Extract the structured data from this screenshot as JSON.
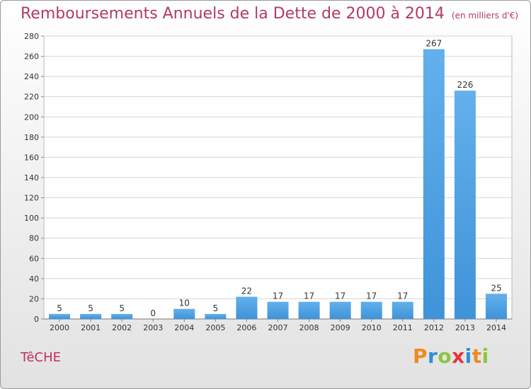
{
  "header": {
    "title": "Remboursements Annuels de la Dette de 2000 à 2014",
    "unit": "(en milliers d'€)"
  },
  "footer": {
    "place": "TêCHE",
    "logo_letters": [
      "P",
      "r",
      "o",
      "x",
      "i",
      "t",
      "i"
    ],
    "logo_colors": [
      "#f08a1e",
      "#2e8fd6",
      "#8cc63f",
      "#e8333f",
      "#2e8fd6",
      "#f08a1e",
      "#8cc63f"
    ]
  },
  "colors": {
    "bar": "#3f93d8",
    "bar_light": "#63b0ec",
    "title": "#b03a6a"
  },
  "chart_data": {
    "type": "bar",
    "categories": [
      "2000",
      "2001",
      "2002",
      "2003",
      "2004",
      "2005",
      "2006",
      "2007",
      "2008",
      "2009",
      "2010",
      "2011",
      "2012",
      "2013",
      "2014"
    ],
    "values": [
      5,
      5,
      5,
      0,
      10,
      5,
      22,
      17,
      17,
      17,
      17,
      17,
      267,
      226,
      25
    ],
    "title": "Remboursements Annuels de la Dette de 2000 à 2014",
    "ylim": [
      0,
      280
    ],
    "yticks": [
      0,
      20,
      40,
      60,
      80,
      100,
      120,
      140,
      160,
      180,
      200,
      220,
      240,
      260,
      280
    ],
    "grid": true
  }
}
